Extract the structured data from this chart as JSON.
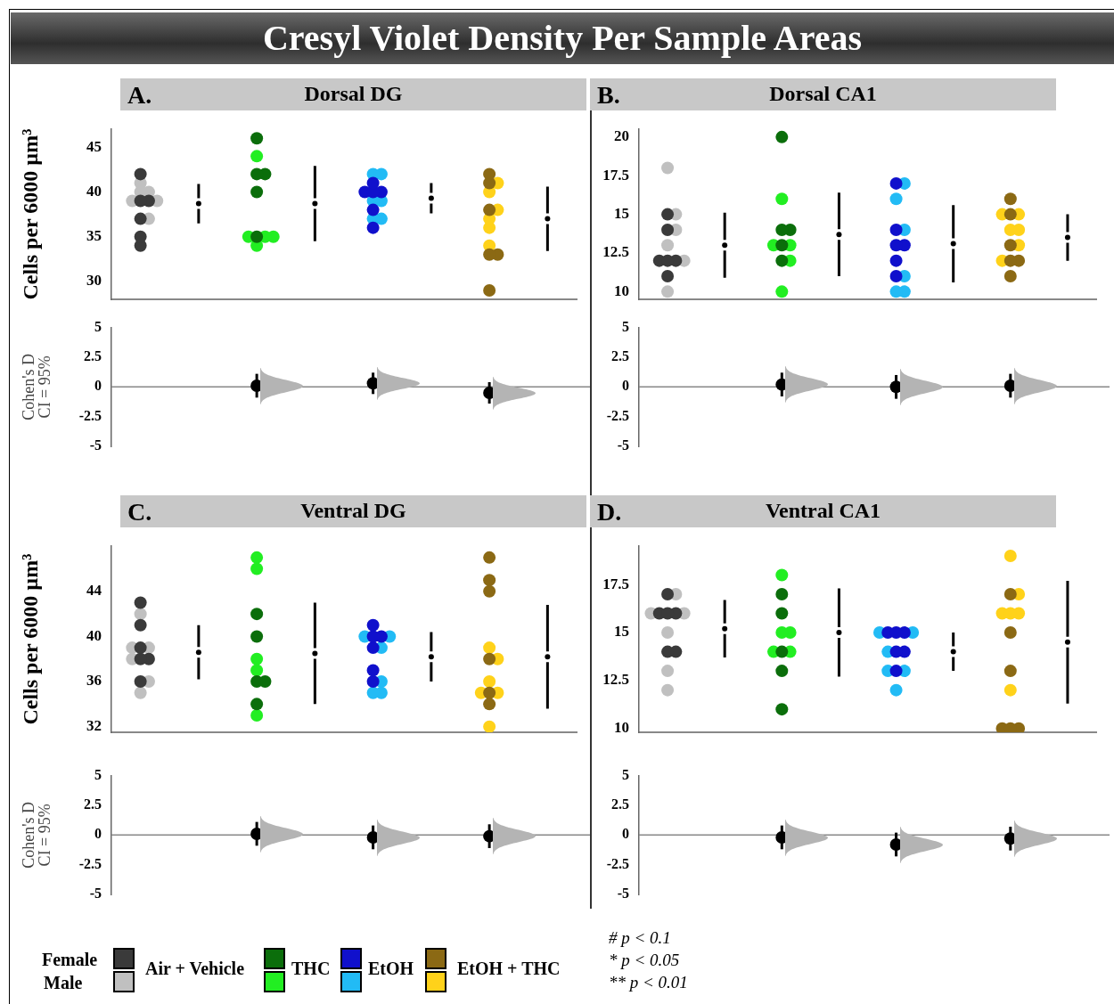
{
  "chart_data": [
    {
      "type": "other",
      "title": "Cresyl Violet Density Per Sample Areas",
      "annotations": [
        "Female",
        "Male",
        "Air + Vehicle",
        "THC",
        "EtOH",
        "EtOH + THC",
        "# p < 0.1",
        "* p < 0.05",
        "** p < 0.01"
      ]
    },
    {
      "type": "scatter",
      "title": "Dorsal DG",
      "annotations": [
        "A."
      ],
      "ylabel": "Cells per 6000 µm³",
      "marker": "circle",
      "tick_labels": "y",
      "categories": [
        null,
        null,
        null,
        null,
        null,
        null,
        null,
        null
      ],
      "ylim": [
        28,
        47
      ],
      "yticks": [
        30,
        35,
        40,
        45
      ],
      "series": [
        {
          "colors": [
            "#3a3a3a",
            null,
            "#0b6e0b",
            null,
            "#1010cc",
            null,
            "#8b6914",
            null
          ],
          "values": [
            42,
            null,
            46,
            null,
            41,
            null,
            42,
            null
          ]
        },
        {
          "colors": [
            "#3a3a3a",
            null,
            "#0b6e0b",
            null,
            "#1010cc",
            null,
            "#8b6914",
            null
          ],
          "values": [
            39,
            null,
            42,
            null,
            40,
            null,
            41,
            null
          ]
        },
        {
          "colors": [
            "#3a3a3a",
            null,
            "#0b6e0b",
            null,
            "#1010cc",
            null,
            "#8b6914",
            null
          ],
          "values": [
            39,
            null,
            42,
            null,
            40,
            null,
            38,
            null
          ]
        },
        {
          "colors": [
            "#3a3a3a",
            null,
            "#0b6e0b",
            null,
            "#1010cc",
            null,
            "#8b6914",
            null
          ],
          "values": [
            37,
            null,
            40,
            null,
            40,
            null,
            33,
            null
          ]
        },
        {
          "colors": [
            "#3a3a3a",
            null,
            "#0b6e0b",
            null,
            "#1010cc",
            null,
            "#8b6914",
            null
          ],
          "values": [
            35,
            null,
            35,
            null,
            38,
            null,
            33,
            null
          ]
        },
        {
          "colors": [
            "#3a3a3a",
            null,
            "#0b6e0b",
            null,
            "#1010cc",
            null,
            "#8b6914",
            null
          ],
          "values": [
            34,
            null,
            null,
            null,
            36,
            null,
            29,
            null
          ]
        },
        {
          "colors": [
            "#c0c0c0",
            null,
            "#22ee22",
            null,
            "#22bbf5",
            null,
            "#ffd21a",
            null
          ],
          "values": [
            41,
            null,
            44,
            null,
            42,
            null,
            41,
            null
          ]
        },
        {
          "colors": [
            "#c0c0c0",
            null,
            "#22ee22",
            null,
            "#22bbf5",
            null,
            "#ffd21a",
            null
          ],
          "values": [
            40,
            null,
            35,
            null,
            42,
            null,
            40,
            null
          ]
        },
        {
          "colors": [
            "#c0c0c0",
            null,
            "#22ee22",
            null,
            "#22bbf5",
            null,
            "#ffd21a",
            null
          ],
          "values": [
            40,
            null,
            35,
            null,
            39,
            null,
            38,
            null
          ]
        },
        {
          "colors": [
            "#c0c0c0",
            null,
            "#22ee22",
            null,
            "#22bbf5",
            null,
            "#ffd21a",
            null
          ],
          "values": [
            39,
            null,
            35,
            null,
            39,
            null,
            37,
            null
          ]
        },
        {
          "colors": [
            "#c0c0c0",
            null,
            "#22ee22",
            null,
            "#22bbf5",
            null,
            "#ffd21a",
            null
          ],
          "values": [
            39,
            null,
            34,
            null,
            37,
            null,
            36,
            null
          ]
        },
        {
          "colors": [
            "#c0c0c0",
            null,
            "#22ee22",
            null,
            "#22bbf5",
            null,
            "#ffd21a",
            null
          ],
          "values": [
            37,
            null,
            null,
            null,
            37,
            null,
            34,
            null
          ]
        },
        {
          "color": "#000000",
          "marker": "circle",
          "values": [
            null,
            38.7,
            null,
            38.7,
            null,
            39.3,
            null,
            37
          ],
          "errors": [
            null,
            2.2,
            null,
            4.2,
            null,
            1.7,
            null,
            3.6
          ]
        }
      ]
    },
    {
      "type": "scatter",
      "title": "Dorsal CA1",
      "annotations": [
        "B."
      ],
      "marker": "circle",
      "tick_labels": "y",
      "categories": [
        null,
        null,
        null,
        null,
        null,
        null,
        null,
        null
      ],
      "ylim": [
        9.5,
        20.5
      ],
      "yticks": [
        10,
        12.5,
        15,
        17.5,
        20
      ],
      "series": [
        {
          "colors": [
            "#3a3a3a",
            null,
            "#0b6e0b",
            null,
            "#1010cc",
            null,
            "#8b6914",
            null
          ],
          "values": [
            15,
            null,
            20,
            null,
            17,
            null,
            16,
            null
          ]
        },
        {
          "colors": [
            "#3a3a3a",
            null,
            "#0b6e0b",
            null,
            "#1010cc",
            null,
            "#8b6914",
            null
          ],
          "values": [
            14,
            null,
            14,
            null,
            14,
            null,
            15,
            null
          ]
        },
        {
          "colors": [
            "#3a3a3a",
            null,
            "#0b6e0b",
            null,
            "#1010cc",
            null,
            "#8b6914",
            null
          ],
          "values": [
            12,
            null,
            14,
            null,
            13,
            null,
            13,
            null
          ]
        },
        {
          "colors": [
            "#3a3a3a",
            null,
            "#0b6e0b",
            null,
            "#1010cc",
            null,
            "#8b6914",
            null
          ],
          "values": [
            12,
            null,
            13,
            null,
            13,
            null,
            12,
            null
          ]
        },
        {
          "colors": [
            "#3a3a3a",
            null,
            "#0b6e0b",
            null,
            "#1010cc",
            null,
            "#8b6914",
            null
          ],
          "values": [
            12,
            null,
            12,
            null,
            12,
            null,
            12,
            null
          ]
        },
        {
          "colors": [
            "#3a3a3a",
            null,
            "#0b6e0b",
            null,
            "#1010cc",
            null,
            "#8b6914",
            null
          ],
          "values": [
            11,
            null,
            null,
            null,
            11,
            null,
            11,
            null
          ]
        },
        {
          "colors": [
            "#c0c0c0",
            null,
            "#22ee22",
            null,
            "#22bbf5",
            null,
            "#ffd21a",
            null
          ],
          "values": [
            18,
            null,
            16,
            null,
            17,
            null,
            15,
            null
          ]
        },
        {
          "colors": [
            "#c0c0c0",
            null,
            "#22ee22",
            null,
            "#22bbf5",
            null,
            "#ffd21a",
            null
          ],
          "values": [
            15,
            null,
            13,
            null,
            16,
            null,
            15,
            null
          ]
        },
        {
          "colors": [
            "#c0c0c0",
            null,
            "#22ee22",
            null,
            "#22bbf5",
            null,
            "#ffd21a",
            null
          ],
          "values": [
            14,
            null,
            13,
            null,
            14,
            null,
            14,
            null
          ]
        },
        {
          "colors": [
            "#c0c0c0",
            null,
            "#22ee22",
            null,
            "#22bbf5",
            null,
            "#ffd21a",
            null
          ],
          "values": [
            13,
            null,
            12,
            null,
            11,
            null,
            14,
            null
          ]
        },
        {
          "colors": [
            "#c0c0c0",
            null,
            "#22ee22",
            null,
            "#22bbf5",
            null,
            "#ffd21a",
            null
          ],
          "values": [
            12,
            null,
            10,
            null,
            10,
            null,
            13,
            null
          ]
        },
        {
          "colors": [
            "#c0c0c0",
            null,
            "#22ee22",
            null,
            "#22bbf5",
            null,
            "#ffd21a",
            null
          ],
          "values": [
            10,
            null,
            null,
            null,
            10,
            null,
            12,
            null
          ]
        },
        {
          "color": "#000000",
          "marker": "circle",
          "values": [
            null,
            13,
            null,
            13.7,
            null,
            13.1,
            null,
            13.5
          ],
          "errors": [
            null,
            2.1,
            null,
            2.7,
            null,
            2.5,
            null,
            1.5
          ]
        }
      ]
    },
    {
      "type": "scatter",
      "categories": [
        null,
        null,
        null,
        null,
        null,
        null,
        null,
        null
      ],
      "ylabel": "Cohen's D\nCI = 95%",
      "marker": "circle",
      "tick_labels": "y",
      "ylim": [
        -5,
        5
      ],
      "yticks": [
        -5,
        -2.5,
        0,
        2.5,
        5
      ],
      "ref_lines": [
        {
          "axis": "y",
          "value": 0,
          "color": "#888888"
        }
      ],
      "series": [
        {
          "color": "#000000",
          "values": [
            null,
            null,
            0.1,
            null,
            0.3,
            null,
            -0.5,
            null
          ],
          "errors": [
            null,
            null,
            1,
            null,
            0.9,
            null,
            0.9,
            null
          ]
        }
      ]
    },
    {
      "type": "scatter",
      "categories": [
        null,
        null,
        null,
        null,
        null,
        null,
        null,
        null
      ],
      "marker": "circle",
      "tick_labels": "y",
      "ylim": [
        -5,
        5
      ],
      "yticks": [
        -5,
        -2.5,
        0,
        2.5,
        5
      ],
      "ref_lines": [
        {
          "axis": "y",
          "value": 0,
          "color": "#888888"
        }
      ],
      "series": [
        {
          "color": "#000000",
          "values": [
            null,
            null,
            0.2,
            null,
            0,
            null,
            0.1,
            null
          ],
          "errors": [
            null,
            null,
            1,
            null,
            1,
            null,
            1,
            null
          ]
        }
      ]
    },
    {
      "type": "scatter",
      "title": "Ventral DG",
      "annotations": [
        "C."
      ],
      "ylabel": "Cells per 6000 µm³",
      "marker": "circle",
      "tick_labels": "y",
      "categories": [
        null,
        null,
        null,
        null,
        null,
        null,
        null,
        null
      ],
      "ylim": [
        31.5,
        48
      ],
      "yticks": [
        32,
        36,
        40,
        44
      ],
      "series": [
        {
          "colors": [
            "#3a3a3a",
            null,
            "#0b6e0b",
            null,
            "#1010cc",
            null,
            "#8b6914",
            null
          ],
          "values": [
            43,
            null,
            42,
            null,
            41,
            null,
            47,
            null
          ]
        },
        {
          "colors": [
            "#3a3a3a",
            null,
            "#0b6e0b",
            null,
            "#1010cc",
            null,
            "#8b6914",
            null
          ],
          "values": [
            41,
            null,
            40,
            null,
            40,
            null,
            45,
            null
          ]
        },
        {
          "colors": [
            "#3a3a3a",
            null,
            "#0b6e0b",
            null,
            "#1010cc",
            null,
            "#8b6914",
            null
          ],
          "values": [
            39,
            null,
            36,
            null,
            40,
            null,
            44,
            null
          ]
        },
        {
          "colors": [
            "#3a3a3a",
            null,
            "#0b6e0b",
            null,
            "#1010cc",
            null,
            "#8b6914",
            null
          ],
          "values": [
            38,
            null,
            36,
            null,
            39,
            null,
            38,
            null
          ]
        },
        {
          "colors": [
            "#3a3a3a",
            null,
            "#0b6e0b",
            null,
            "#1010cc",
            null,
            "#8b6914",
            null
          ],
          "values": [
            38,
            null,
            34,
            null,
            37,
            null,
            35,
            null
          ]
        },
        {
          "colors": [
            "#3a3a3a",
            null,
            "#0b6e0b",
            null,
            "#1010cc",
            null,
            "#8b6914",
            null
          ],
          "values": [
            36,
            null,
            null,
            null,
            36,
            null,
            34,
            null
          ]
        },
        {
          "colors": [
            "#c0c0c0",
            null,
            "#22ee22",
            null,
            "#22bbf5",
            null,
            "#ffd21a",
            null
          ],
          "values": [
            42,
            null,
            47,
            null,
            40,
            null,
            39,
            null
          ]
        },
        {
          "colors": [
            "#c0c0c0",
            null,
            "#22ee22",
            null,
            "#22bbf5",
            null,
            "#ffd21a",
            null
          ],
          "values": [
            39,
            null,
            46,
            null,
            40,
            null,
            38,
            null
          ]
        },
        {
          "colors": [
            "#c0c0c0",
            null,
            "#22ee22",
            null,
            "#22bbf5",
            null,
            "#ffd21a",
            null
          ],
          "values": [
            39,
            null,
            38,
            null,
            39,
            null,
            36,
            null
          ]
        },
        {
          "colors": [
            "#c0c0c0",
            null,
            "#22ee22",
            null,
            "#22bbf5",
            null,
            "#ffd21a",
            null
          ],
          "values": [
            38,
            null,
            37,
            null,
            36,
            null,
            35,
            null
          ]
        },
        {
          "colors": [
            "#c0c0c0",
            null,
            "#22ee22",
            null,
            "#22bbf5",
            null,
            "#ffd21a",
            null
          ],
          "values": [
            36,
            null,
            33,
            null,
            35,
            null,
            35,
            null
          ]
        },
        {
          "colors": [
            "#c0c0c0",
            null,
            "#22ee22",
            null,
            "#22bbf5",
            null,
            "#ffd21a",
            null
          ],
          "values": [
            35,
            null,
            null,
            null,
            35,
            null,
            32,
            null
          ]
        },
        {
          "color": "#000000",
          "marker": "circle",
          "values": [
            null,
            38.6,
            null,
            38.5,
            null,
            38.2,
            null,
            38.2
          ],
          "errors": [
            null,
            2.4,
            null,
            4.5,
            null,
            2.2,
            null,
            4.6
          ]
        }
      ]
    },
    {
      "type": "scatter",
      "title": "Ventral CA1",
      "annotations": [
        "D."
      ],
      "marker": "circle",
      "tick_labels": "y",
      "categories": [
        null,
        null,
        null,
        null,
        null,
        null,
        null,
        null
      ],
      "ylim": [
        9.8,
        19.5
      ],
      "yticks": [
        10,
        12.5,
        15,
        17.5
      ],
      "series": [
        {
          "colors": [
            "#3a3a3a",
            null,
            "#0b6e0b",
            null,
            "#1010cc",
            null,
            "#8b6914",
            null
          ],
          "values": [
            17,
            null,
            17,
            null,
            15,
            null,
            17,
            null
          ]
        },
        {
          "colors": [
            "#3a3a3a",
            null,
            "#0b6e0b",
            null,
            "#1010cc",
            null,
            "#8b6914",
            null
          ],
          "values": [
            16,
            null,
            16,
            null,
            15,
            null,
            15,
            null
          ]
        },
        {
          "colors": [
            "#3a3a3a",
            null,
            "#0b6e0b",
            null,
            "#1010cc",
            null,
            "#8b6914",
            null
          ],
          "values": [
            16,
            null,
            14,
            null,
            15,
            null,
            13,
            null
          ]
        },
        {
          "colors": [
            "#3a3a3a",
            null,
            "#0b6e0b",
            null,
            "#1010cc",
            null,
            "#8b6914",
            null
          ],
          "values": [
            16,
            null,
            13,
            null,
            14,
            null,
            10,
            null
          ]
        },
        {
          "colors": [
            "#3a3a3a",
            null,
            "#0b6e0b",
            null,
            "#1010cc",
            null,
            "#8b6914",
            null
          ],
          "values": [
            14,
            null,
            11,
            null,
            14,
            null,
            10,
            null
          ]
        },
        {
          "colors": [
            "#3a3a3a",
            null,
            "#0b6e0b",
            null,
            "#1010cc",
            null,
            "#8b6914",
            null
          ],
          "values": [
            14,
            null,
            null,
            null,
            13,
            null,
            10,
            null
          ]
        },
        {
          "colors": [
            "#c0c0c0",
            null,
            "#22ee22",
            null,
            "#22bbf5",
            null,
            "#ffd21a",
            null
          ],
          "values": [
            17,
            null,
            18,
            null,
            15,
            null,
            19,
            null
          ]
        },
        {
          "colors": [
            "#c0c0c0",
            null,
            "#22ee22",
            null,
            "#22bbf5",
            null,
            "#ffd21a",
            null
          ],
          "values": [
            16,
            null,
            15,
            null,
            15,
            null,
            17,
            null
          ]
        },
        {
          "colors": [
            "#c0c0c0",
            null,
            "#22ee22",
            null,
            "#22bbf5",
            null,
            "#ffd21a",
            null
          ],
          "values": [
            16,
            null,
            15,
            null,
            14,
            null,
            16,
            null
          ]
        },
        {
          "colors": [
            "#c0c0c0",
            null,
            "#22ee22",
            null,
            "#22bbf5",
            null,
            "#ffd21a",
            null
          ],
          "values": [
            15,
            null,
            14,
            null,
            13,
            null,
            16,
            null
          ]
        },
        {
          "colors": [
            "#c0c0c0",
            null,
            "#22ee22",
            null,
            "#22bbf5",
            null,
            "#ffd21a",
            null
          ],
          "values": [
            13,
            null,
            14,
            null,
            13,
            null,
            16,
            null
          ]
        },
        {
          "colors": [
            "#c0c0c0",
            null,
            "#22ee22",
            null,
            "#22bbf5",
            null,
            "#ffd21a",
            null
          ],
          "values": [
            12,
            null,
            null,
            null,
            12,
            null,
            12,
            null
          ]
        },
        {
          "color": "#000000",
          "marker": "circle",
          "values": [
            null,
            15.2,
            null,
            15,
            null,
            14,
            null,
            14.5
          ],
          "errors": [
            null,
            1.5,
            null,
            2.3,
            null,
            1,
            null,
            3.2
          ]
        }
      ]
    },
    {
      "type": "scatter",
      "categories": [
        null,
        null,
        null,
        null,
        null,
        null,
        null,
        null
      ],
      "ylabel": "Cohen's D\nCI = 95%",
      "marker": "circle",
      "tick_labels": "y",
      "ylim": [
        -5,
        5
      ],
      "yticks": [
        -5,
        -2.5,
        0,
        2.5,
        5
      ],
      "ref_lines": [
        {
          "axis": "y",
          "value": 0,
          "color": "#888888"
        }
      ],
      "series": [
        {
          "color": "#000000",
          "values": [
            null,
            null,
            0.1,
            null,
            -0.2,
            null,
            -0.1,
            null
          ],
          "errors": [
            null,
            null,
            1,
            null,
            1,
            null,
            1,
            null
          ]
        }
      ]
    },
    {
      "type": "scatter",
      "categories": [
        null,
        null,
        null,
        null,
        null,
        null,
        null,
        null
      ],
      "marker": "circle",
      "tick_labels": "y",
      "ylim": [
        -5,
        5
      ],
      "yticks": [
        -5,
        -2.5,
        0,
        2.5,
        5
      ],
      "ref_lines": [
        {
          "axis": "y",
          "value": 0,
          "color": "#888888"
        }
      ],
      "series": [
        {
          "color": "#000000",
          "values": [
            null,
            null,
            -0.2,
            null,
            -0.8,
            null,
            -0.3,
            null
          ],
          "errors": [
            null,
            null,
            1,
            null,
            1,
            null,
            1,
            null
          ]
        }
      ]
    }
  ]
}
